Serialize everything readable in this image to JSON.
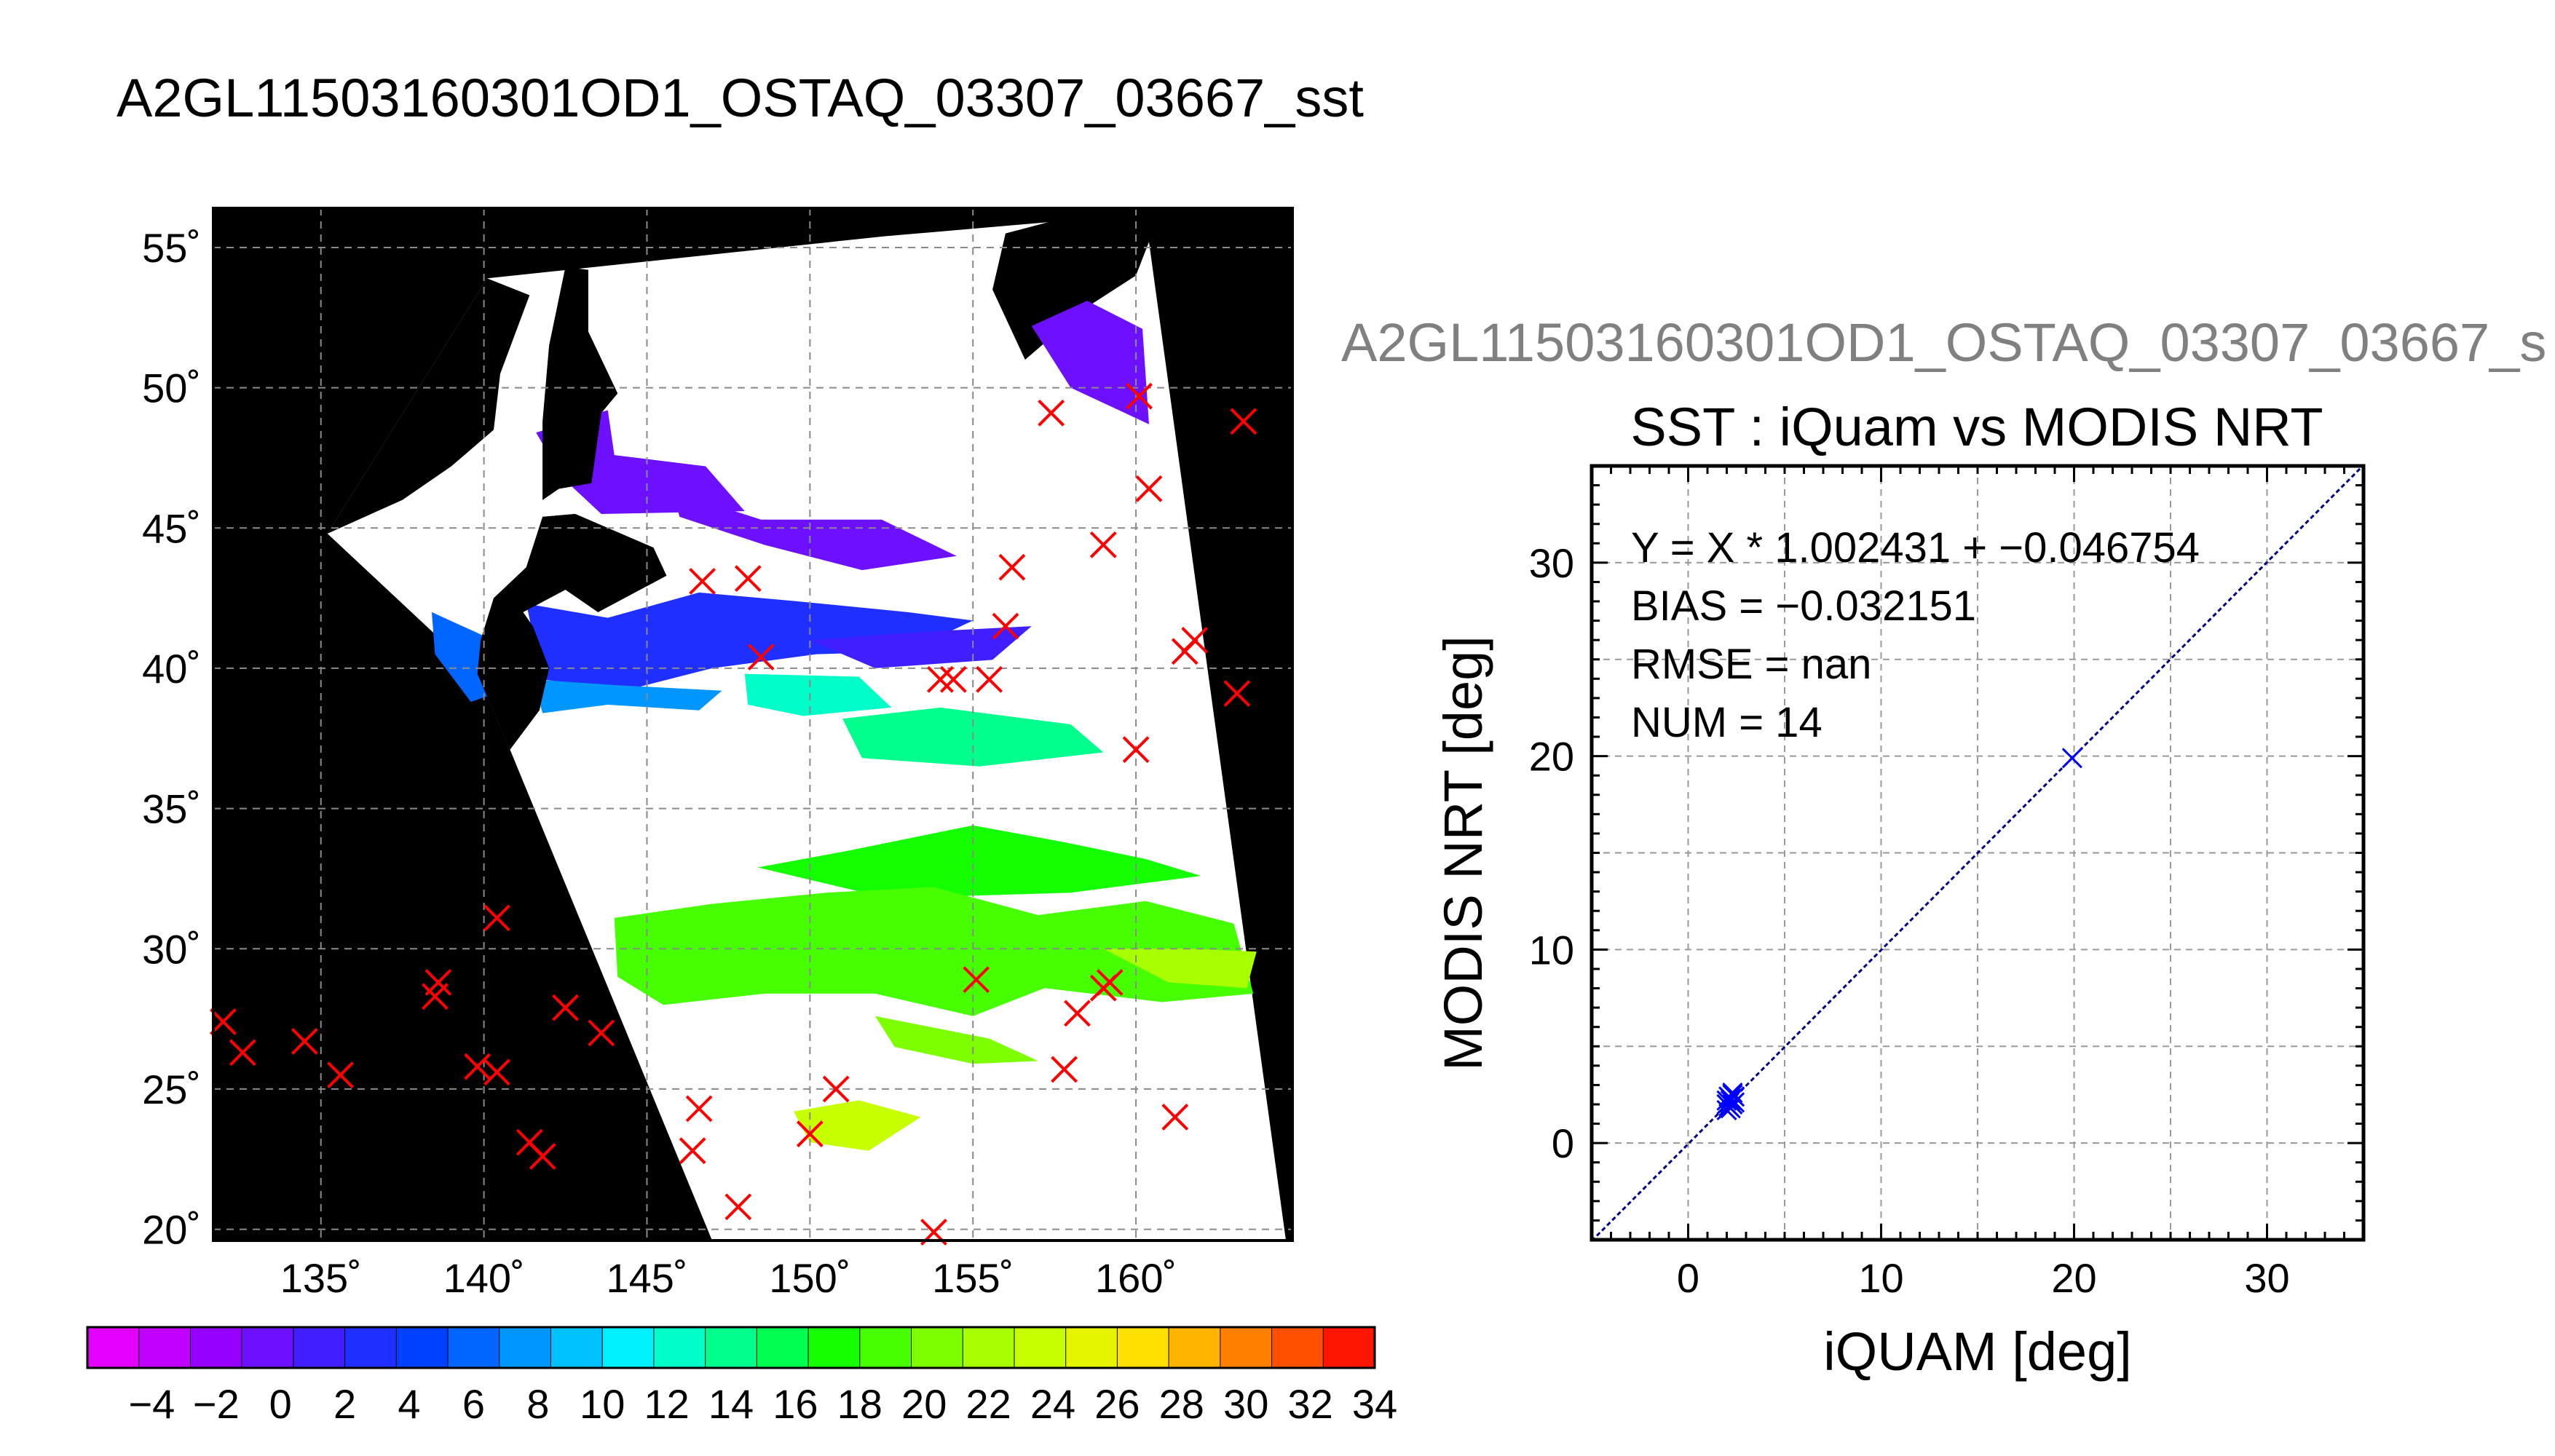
{
  "title_main": "A2GL11503160301OD1_OSTAQ_03307_03667_sst",
  "title_side": "A2GL11503160301OD1_OSTAQ_03307_03667_s",
  "chart_data": [
    {
      "type": "heatmap",
      "description": "SST map with iQuam match locations",
      "lon_ticks": [
        "135˚",
        "140˚",
        "145˚",
        "150˚",
        "155˚",
        "160˚"
      ],
      "lon_values": [
        135,
        140,
        145,
        150,
        155,
        160
      ],
      "lat_ticks": [
        "20˚",
        "25˚",
        "30˚",
        "35˚",
        "40˚",
        "45˚",
        "50˚",
        "55˚"
      ],
      "lat_values": [
        20,
        25,
        30,
        35,
        40,
        45,
        50,
        55
      ],
      "lon_range": [
        131.7,
        164.8
      ],
      "lat_range": [
        19.6,
        56.4
      ],
      "colorbar": {
        "labels": [
          "−4",
          "−2",
          "0",
          "2",
          "4",
          "6",
          "8",
          "10",
          "12",
          "14",
          "16",
          "18",
          "20",
          "22",
          "24",
          "26",
          "28",
          "30",
          "32",
          "34"
        ],
        "values": [
          -4,
          -2,
          0,
          2,
          4,
          6,
          8,
          10,
          12,
          14,
          16,
          18,
          20,
          22,
          24,
          26,
          28,
          30,
          32,
          34
        ],
        "range": [
          -6,
          34
        ],
        "colors": [
          "#e300ff",
          "#c100ff",
          "#9500ff",
          "#6d10ff",
          "#3f1fff",
          "#1f2fff",
          "#0040ff",
          "#0066ff",
          "#0096ff",
          "#00c2ff",
          "#00f0ff",
          "#00ffc8",
          "#00ff8c",
          "#00ff50",
          "#14ff00",
          "#46ff00",
          "#7dff00",
          "#a8ff00",
          "#c8ff00",
          "#e6f400",
          "#ffe000",
          "#ffb400",
          "#ff8000",
          "#ff5000",
          "#ff1500"
        ]
      },
      "match_points": [
        [
          132.0,
          27.4
        ],
        [
          132.6,
          26.3
        ],
        [
          134.5,
          26.7
        ],
        [
          135.6,
          25.5
        ],
        [
          138.6,
          28.8
        ],
        [
          138.5,
          28.3
        ],
        [
          139.8,
          25.8
        ],
        [
          140.4,
          25.6
        ],
        [
          140.4,
          31.1
        ],
        [
          141.4,
          23.1
        ],
        [
          141.8,
          22.6
        ],
        [
          142.5,
          27.9
        ],
        [
          143.6,
          27.0
        ],
        [
          146.4,
          22.8
        ],
        [
          146.6,
          24.3
        ],
        [
          147.8,
          20.8
        ],
        [
          150.0,
          23.4
        ],
        [
          150.8,
          25.0
        ],
        [
          153.8,
          19.9
        ],
        [
          155.1,
          28.9
        ],
        [
          155.5,
          39.6
        ],
        [
          154.0,
          39.6
        ],
        [
          156.0,
          41.5
        ],
        [
          156.2,
          43.6
        ],
        [
          157.4,
          49.1
        ],
        [
          158.2,
          27.7
        ],
        [
          157.8,
          25.7
        ],
        [
          159.0,
          28.6
        ],
        [
          159.2,
          28.8
        ],
        [
          159.0,
          44.4
        ],
        [
          160.0,
          37.1
        ],
        [
          160.4,
          46.4
        ],
        [
          161.5,
          40.6
        ],
        [
          161.8,
          41.0
        ],
        [
          161.2,
          24.0
        ],
        [
          163.3,
          48.8
        ],
        [
          163.1,
          39.1
        ],
        [
          146.7,
          43.1
        ],
        [
          148.1,
          43.2
        ],
        [
          148.5,
          40.4
        ],
        [
          160.1,
          49.7
        ],
        [
          154.4,
          39.6
        ]
      ]
    },
    {
      "type": "scatter",
      "title": "SST : iQuam vs MODIS NRT",
      "xlabel": "iQUAM [deg]",
      "ylabel": "MODIS NRT [deg]",
      "xlim": [
        -5,
        35
      ],
      "ylim": [
        -5,
        35
      ],
      "xticks": [
        0,
        10,
        20,
        30
      ],
      "yticks": [
        0,
        10,
        20,
        30
      ],
      "grid": true,
      "annotations": [
        "Y = X * 1.002431 + −0.046754",
        "BIAS = −0.032151",
        "RMSE = nan",
        "NUM = 14"
      ],
      "fit": {
        "slope": 1.002431,
        "intercept": -0.046754
      },
      "points": [
        [
          2.0,
          2.0
        ],
        [
          2.1,
          1.9
        ],
        [
          2.2,
          2.3
        ],
        [
          2.3,
          2.5
        ],
        [
          2.0,
          2.2
        ],
        [
          2.4,
          2.1
        ],
        [
          2.2,
          1.8
        ],
        [
          2.1,
          2.4
        ],
        [
          2.3,
          2.0
        ],
        [
          2.4,
          2.4
        ],
        [
          2.0,
          1.7
        ],
        [
          2.3,
          2.6
        ],
        [
          19.9,
          19.9
        ],
        [
          2.2,
          2.2
        ]
      ],
      "marker_color": "#0000ff",
      "line_color": "#000080"
    }
  ]
}
